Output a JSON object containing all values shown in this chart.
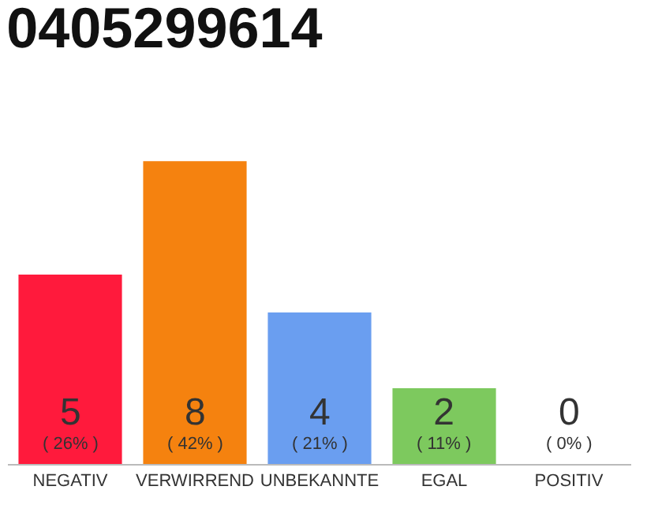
{
  "chart_data": {
    "type": "bar",
    "title": "0405299614",
    "categories": [
      "NEGATIV",
      "VERWIRREND",
      "UNBEKANNTE",
      "EGAL",
      "POSITIV"
    ],
    "values": [
      5,
      8,
      4,
      2,
      0
    ],
    "colors": [
      "#ff1a3c",
      "#f5820f",
      "#6a9ef0",
      "#7dc95e",
      "#dddddd"
    ],
    "value_labels": [
      "5\n( 26% )",
      "8\n( 42% )",
      "4\n( 21% )",
      "2\n( 11% )",
      "0\n( 0% )"
    ],
    "grid": false,
    "legend": false
  }
}
